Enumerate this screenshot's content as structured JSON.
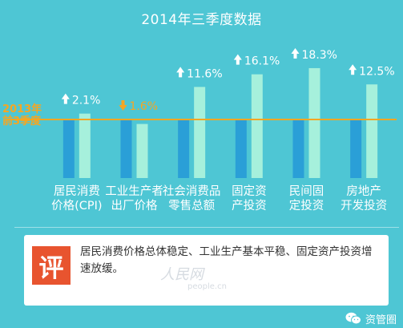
{
  "title": "2014年三季度数据",
  "reference": {
    "label_line1": "2013年",
    "label_line2": "前3季度"
  },
  "colors": {
    "background": "#4ec6d4",
    "bar_2013": "#2a9fd7",
    "bar_2014": "#a6f0dc",
    "reference_line": "#f5a623",
    "up_arrow": "#ffffff",
    "down_arrow": "#f5a623",
    "comment_badge": "#e8542f"
  },
  "chart_data": {
    "type": "bar",
    "categories": [
      [
        "居民消费",
        "价格(CPI)"
      ],
      [
        "工业生产者",
        "出厂价格"
      ],
      [
        "社会消费品",
        "零售总额"
      ],
      [
        "固定资",
        "产投资"
      ],
      [
        "民间固",
        "定投资"
      ],
      [
        "房地产",
        "开发投资"
      ]
    ],
    "series": [
      {
        "values": [
          null,
          null,
          null,
          null,
          null,
          null
        ]
      },
      {
        "values": [
          2.1,
          -1.6,
          11.6,
          16.1,
          18.3,
          12.5
        ]
      }
    ],
    "data_labels": [
      "2.1%",
      "1.6%",
      "11.6%",
      "16.1%",
      "18.3%",
      "12.5%"
    ],
    "directions": [
      "up",
      "down",
      "up",
      "up",
      "up",
      "up"
    ],
    "xlabel": "",
    "ylabel": ""
  },
  "comment": {
    "badge": "评",
    "text": "居民消费价格总体稳定、工业生产基本平稳、固定资产投资增速放缓。"
  },
  "watermark": {
    "brand": "人民网",
    "site": "people.cn"
  },
  "footer": {
    "account": "资管圈"
  }
}
